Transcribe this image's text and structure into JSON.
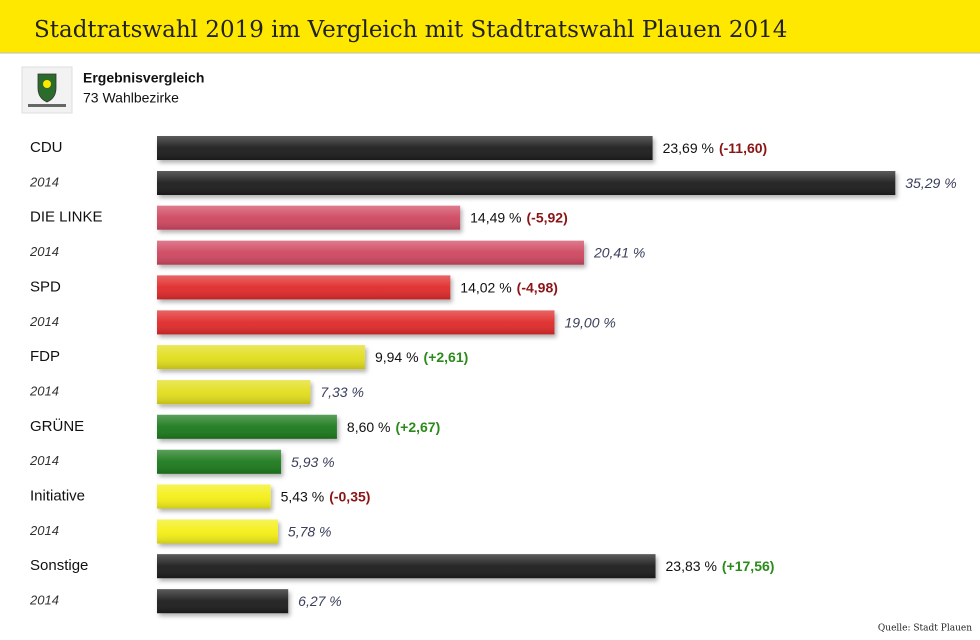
{
  "title": "Stadtratswahl 2019 im Vergleich mit Stadtratswahl Plauen 2014",
  "subtitle": "Ergebnisvergleich",
  "note": "73 Wahlbezirke",
  "source": "Quelle: Stadt Plauen",
  "chart_data": {
    "type": "bar",
    "orientation": "horizontal",
    "categories": [
      "CDU",
      "DIE LINKE",
      "SPD",
      "FDP",
      "GRÜNE",
      "Initiative",
      "Sonstige"
    ],
    "colors": [
      "#1a1a1a",
      "#cf4760",
      "#e02b2b",
      "#e2de1c",
      "#1d7a1d",
      "#f4ef12",
      "#1a1a1a"
    ],
    "series": [
      {
        "values": [
          23.69,
          14.49,
          14.02,
          9.94,
          8.6,
          5.43,
          23.83
        ],
        "value_labels": [
          "23,69 %",
          "14,49 %",
          "14,02 %",
          "9,94 %",
          "8,60 %",
          "5,43 %",
          "23,83 %"
        ],
        "changes": [
          -11.6,
          -5.92,
          -4.98,
          2.61,
          2.67,
          -0.35,
          17.56
        ],
        "change_labels": [
          "(-11,60)",
          "(-5,92)",
          "(-4,98)",
          "(+2,61)",
          "(+2,67)",
          "(-0,35)",
          "(+17,56)"
        ]
      },
      {
        "name": "2014",
        "values": [
          35.29,
          20.41,
          19.0,
          7.33,
          5.93,
          5.78,
          6.27
        ],
        "value_labels": [
          "35,29 %",
          "20,41 %",
          "19,00 %",
          "7,33 %",
          "5,93 %",
          "5,78 %",
          "6,27 %"
        ]
      }
    ],
    "negative_color": "#8b1414",
    "positive_color": "#2a8a1a"
  }
}
